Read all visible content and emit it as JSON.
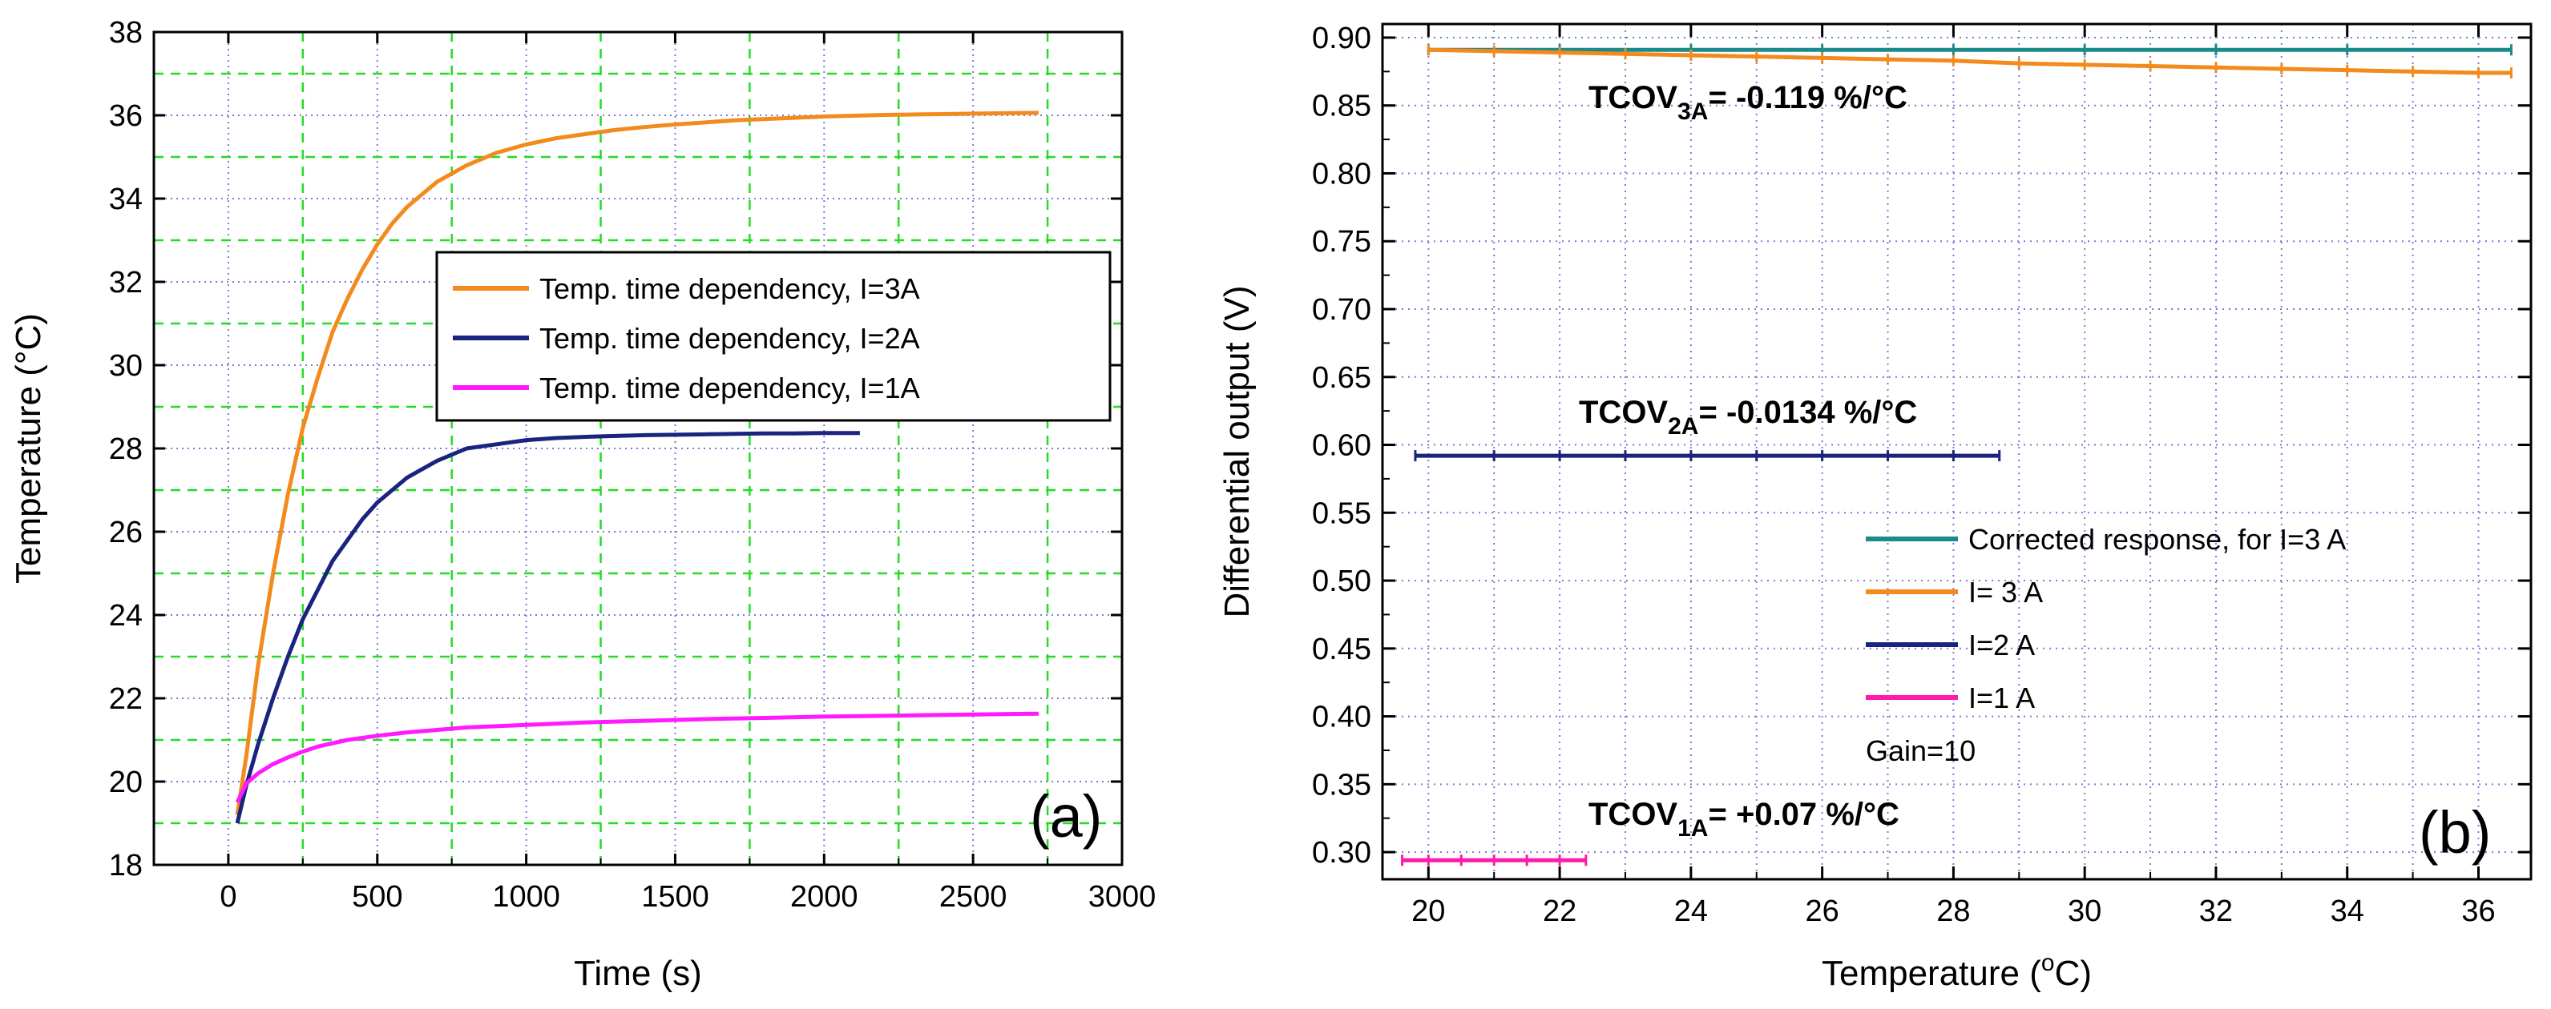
{
  "chart_data": [
    {
      "type": "line",
      "panel_label": "(a)",
      "xlabel": "Time (s)",
      "ylabel_prefix": "Temperature (",
      "ylabel_unit": "°C",
      "ylabel_suffix": ")",
      "xlim": [
        -250,
        3000
      ],
      "ylim": [
        18,
        38
      ],
      "xticks": [
        0,
        500,
        1000,
        1500,
        2000,
        2500,
        3000
      ],
      "yticks": [
        18,
        20,
        22,
        24,
        26,
        28,
        30,
        32,
        34,
        36,
        38
      ],
      "grid": true,
      "legend_position": "right-center",
      "series": [
        {
          "name": "Temp. time dependency, I=3A",
          "color": "#f28a1e",
          "x": [
            30,
            60,
            100,
            150,
            200,
            250,
            300,
            350,
            400,
            450,
            500,
            550,
            600,
            700,
            800,
            900,
            1000,
            1100,
            1200,
            1300,
            1400,
            1500,
            1600,
            1700,
            1800,
            1900,
            2000,
            2100,
            2200,
            2300,
            2400,
            2500,
            2600,
            2720
          ],
          "y": [
            19.2,
            20.6,
            22.8,
            25.0,
            26.9,
            28.5,
            29.7,
            30.8,
            31.6,
            32.3,
            32.9,
            33.4,
            33.8,
            34.4,
            34.8,
            35.1,
            35.3,
            35.45,
            35.55,
            35.65,
            35.72,
            35.78,
            35.83,
            35.88,
            35.91,
            35.94,
            35.97,
            35.99,
            36.01,
            36.02,
            36.03,
            36.04,
            36.05,
            36.06
          ]
        },
        {
          "name": "Temp. time dependency, I=2A",
          "color": "#1a237e",
          "x": [
            30,
            60,
            100,
            150,
            200,
            250,
            300,
            350,
            400,
            450,
            500,
            550,
            600,
            700,
            800,
            900,
            1000,
            1100,
            1200,
            1300,
            1400,
            1500,
            1600,
            1700,
            1800,
            1900,
            2000,
            2120
          ],
          "y": [
            19.0,
            19.9,
            20.9,
            22.0,
            23.0,
            23.9,
            24.6,
            25.3,
            25.8,
            26.3,
            26.7,
            27.0,
            27.3,
            27.7,
            28.0,
            28.1,
            28.2,
            28.25,
            28.28,
            28.3,
            28.32,
            28.33,
            28.34,
            28.35,
            28.36,
            28.36,
            28.37,
            28.37
          ]
        },
        {
          "name": "Temp. time dependency, I=1A",
          "color": "#ff1aff",
          "x": [
            30,
            60,
            100,
            150,
            200,
            250,
            300,
            400,
            500,
            600,
            700,
            800,
            1000,
            1200,
            1400,
            1600,
            1800,
            2000,
            2200,
            2400,
            2600,
            2720
          ],
          "y": [
            19.5,
            19.95,
            20.2,
            20.42,
            20.58,
            20.72,
            20.84,
            21.0,
            21.1,
            21.18,
            21.24,
            21.3,
            21.36,
            21.42,
            21.46,
            21.5,
            21.53,
            21.56,
            21.58,
            21.6,
            21.62,
            21.63
          ]
        }
      ]
    },
    {
      "type": "line",
      "panel_label": "(b)",
      "xlabel_prefix": "Temperature (",
      "xlabel_sup": "o",
      "xlabel_suffix": "C)",
      "ylabel": "Differential output (V)",
      "xlim": [
        19.3,
        36.8
      ],
      "ylim": [
        0.28,
        0.91
      ],
      "xticks": [
        20,
        22,
        24,
        26,
        28,
        30,
        32,
        34,
        36
      ],
      "yticks": [
        0.3,
        0.35,
        0.4,
        0.45,
        0.5,
        0.55,
        0.6,
        0.65,
        0.7,
        0.75,
        0.8,
        0.85,
        0.9
      ],
      "ytick_labels": [
        "0.30",
        "0.35",
        "0.40",
        "0.45",
        "0.50",
        "0.55",
        "0.60",
        "0.65",
        "0.70",
        "0.75",
        "0.80",
        "0.85",
        "0.90"
      ],
      "grid": true,
      "legend_position": "bottom-right",
      "legend_note": "Gain=10",
      "series": [
        {
          "name": "Corrected response, for I=3 A",
          "color": "#1a8a8a",
          "x": [
            20,
            22,
            24,
            26,
            28,
            30,
            32,
            34,
            36.5
          ],
          "y": [
            0.891,
            0.891,
            0.891,
            0.891,
            0.891,
            0.891,
            0.891,
            0.891,
            0.891
          ]
        },
        {
          "name": "I= 3 A",
          "color": "#f28a1e",
          "x": [
            20,
            21,
            22,
            23,
            24,
            25,
            26,
            27,
            28,
            29,
            30,
            31,
            32,
            33,
            34,
            35,
            36,
            36.5
          ],
          "y": [
            0.891,
            0.89,
            0.889,
            0.888,
            0.887,
            0.886,
            0.885,
            0.884,
            0.883,
            0.881,
            0.88,
            0.879,
            0.878,
            0.877,
            0.876,
            0.875,
            0.874,
            0.874
          ]
        },
        {
          "name": "I=2 A",
          "color": "#1a237e",
          "x": [
            19.8,
            21,
            22,
            23,
            24,
            25,
            26,
            27,
            28,
            28.7
          ],
          "y": [
            0.592,
            0.592,
            0.592,
            0.592,
            0.592,
            0.592,
            0.592,
            0.592,
            0.592,
            0.592
          ]
        },
        {
          "name": "I=1 A",
          "color": "#ff1aaa",
          "x": [
            19.6,
            20,
            20.5,
            21,
            21.5,
            22,
            22.4
          ],
          "y": [
            0.294,
            0.294,
            0.294,
            0.294,
            0.294,
            0.294,
            0.294
          ]
        }
      ],
      "annotations": [
        {
          "main": "TCOV",
          "sub": "3A",
          "rest": "= -0.119 %/°C"
        },
        {
          "main": "TCOV",
          "sub": "2A",
          "rest": "= -0.0134 %/°C"
        },
        {
          "main": "TCOV",
          "sub": "1A",
          "rest": "= +0.07 %/°C"
        }
      ]
    }
  ]
}
